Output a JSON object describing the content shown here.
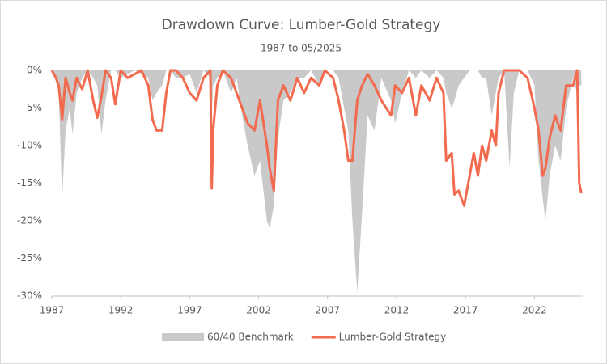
{
  "chart_data": {
    "type": "drawdown",
    "title": "Drawdown Curve: Lumber-Gold Strategy",
    "subtitle": "1987 to 05/2025",
    "x": [
      1987.0,
      1987.3,
      1987.5,
      1987.75,
      1988.0,
      1988.3,
      1988.5,
      1988.8,
      1989.2,
      1989.6,
      1990.0,
      1990.3,
      1990.6,
      1990.9,
      1991.3,
      1991.6,
      1992.0,
      1992.5,
      1993.0,
      1993.5,
      1994.0,
      1994.3,
      1994.6,
      1995.0,
      1995.3,
      1995.6,
      1996.0,
      1996.5,
      1997.0,
      1997.5,
      1998.0,
      1998.5,
      1998.6,
      1998.7,
      1999.0,
      1999.4,
      2000.0,
      2000.4,
      2000.8,
      2001.2,
      2001.7,
      2002.1,
      2002.6,
      2002.8,
      2003.1,
      2003.4,
      2003.8,
      2004.3,
      2004.8,
      2005.3,
      2005.8,
      2006.4,
      2006.8,
      2007.4,
      2007.8,
      2008.2,
      2008.5,
      2008.8,
      2009.15,
      2009.5,
      2009.9,
      2010.4,
      2010.9,
      2011.6,
      2011.9,
      2012.4,
      2012.9,
      2013.4,
      2013.8,
      2014.4,
      2014.9,
      2015.4,
      2015.6,
      2016.0,
      2016.2,
      2016.5,
      2016.9,
      2017.3,
      2017.6,
      2017.9,
      2018.2,
      2018.5,
      2018.9,
      2019.2,
      2019.4,
      2019.8,
      2020.2,
      2020.5,
      2020.9,
      2021.5,
      2022.0,
      2022.3,
      2022.6,
      2022.8,
      2023.1,
      2023.5,
      2023.9,
      2024.3,
      2024.8,
      2025.1,
      2025.25,
      2025.4
    ],
    "series": [
      {
        "name": "60/40 Benchmark",
        "color": "#c9c9c9",
        "style": "area",
        "values": [
          0,
          -1,
          -3,
          -17,
          -8,
          -5,
          -8.5,
          -3,
          -1,
          0,
          -1,
          -2,
          -8.5,
          -4,
          0,
          0,
          -1,
          -0.5,
          0,
          -0.5,
          -1,
          -4,
          -3,
          -2,
          0,
          0,
          -1,
          -1,
          -0.5,
          -3,
          0,
          -1,
          -6,
          -2,
          -1,
          0,
          -3,
          -1,
          -6,
          -10,
          -14,
          -12,
          -20,
          -21,
          -18,
          -9,
          -4,
          -3,
          -1,
          -1,
          0,
          -2,
          0,
          0,
          -1,
          -5,
          -8,
          -20,
          -29.5,
          -19,
          -6,
          -8,
          -1,
          -4,
          -7,
          -3,
          0,
          -1,
          0,
          -1,
          0,
          -1,
          -3,
          -5,
          -4,
          -2,
          -1,
          0,
          0,
          0,
          -1,
          -1,
          -6,
          -3,
          -1,
          0,
          -13,
          -3,
          0,
          0,
          -2,
          -12,
          -17,
          -20,
          -14,
          -10,
          -12,
          -5,
          -1,
          -3,
          -2,
          -2
        ]
      },
      {
        "name": "Lumber-Gold Strategy",
        "color": "#f26b4f",
        "style": "line",
        "values": [
          0,
          -1,
          -2,
          -6.5,
          -1,
          -3,
          -4,
          -1,
          -2.5,
          0,
          -4,
          -6.3,
          -3.5,
          0,
          -1,
          -4.5,
          0,
          -1,
          -0.5,
          0,
          -2,
          -6.5,
          -8,
          -8,
          -3,
          0,
          0,
          -1,
          -3,
          -4,
          -1,
          0,
          -15.7,
          -8,
          -2,
          0,
          -1,
          -3,
          -5,
          -7,
          -8,
          -4,
          -10,
          -13,
          -16,
          -4,
          -2,
          -4,
          -1,
          -3,
          -1,
          -2,
          0,
          -1,
          -4,
          -8,
          -12,
          -12,
          -4,
          -2,
          -0.5,
          -2,
          -4,
          -6,
          -2,
          -3,
          -1,
          -6,
          -2,
          -4,
          -1,
          -3,
          -12,
          -11,
          -16.5,
          -16,
          -18,
          -14,
          -11,
          -14,
          -10,
          -12,
          -8,
          -10,
          -3,
          0,
          0,
          0,
          0,
          -1,
          -5,
          -8,
          -14,
          -13,
          -9,
          -6,
          -8,
          -2,
          -2,
          0,
          -15,
          -16.3
        ]
      }
    ],
    "xlim": [
      1987,
      2025.5
    ],
    "xticks": [
      1987,
      1992,
      1997,
      2002,
      2007,
      2012,
      2017,
      2022
    ],
    "ylim": [
      -30,
      0
    ],
    "yticks": [
      {
        "value": 0,
        "label": "0%"
      },
      {
        "value": -5,
        "label": "-5%"
      },
      {
        "value": -10,
        "label": "-10%"
      },
      {
        "value": -15,
        "label": "-15%"
      },
      {
        "value": -20,
        "label": "-20%"
      },
      {
        "value": -25,
        "label": "-25%"
      },
      {
        "value": -30,
        "label": "-30%"
      }
    ],
    "legend": "bottom"
  }
}
